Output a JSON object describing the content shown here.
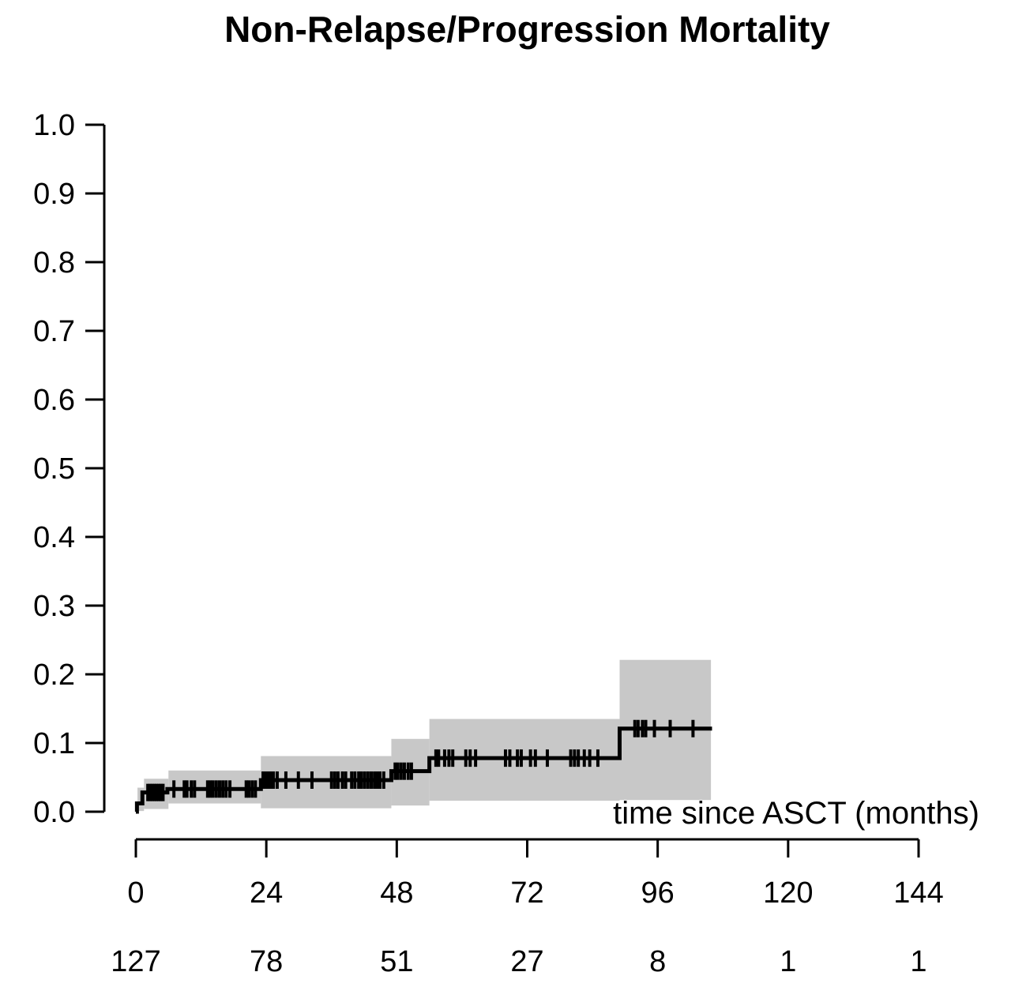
{
  "chart_data": {
    "type": "line",
    "subtype": "cumulative-incidence-step-curve-with-confidence-band",
    "title": "Non-Relapse/Progression Mortality",
    "xlabel": "time since ASCT (months)",
    "ylabel": "",
    "xlim": [
      0,
      144
    ],
    "ylim": [
      0.0,
      1.0
    ],
    "grid": false,
    "legend_position": "none",
    "x_ticks": [
      0,
      24,
      48,
      72,
      96,
      120,
      144
    ],
    "y_tick_labels": [
      "0.0",
      "0.1",
      "0.2",
      "0.3",
      "0.4",
      "0.5",
      "0.6",
      "0.7",
      "0.8",
      "0.9",
      "1.0"
    ],
    "colors": {
      "curve": "#000000",
      "confidence_band": "#c8c8c8",
      "axis": "#000000",
      "background": "#ffffff"
    },
    "series": [
      {
        "name": "Non-Relapse/Progression Mortality",
        "steps": [
          [
            0,
            0.0
          ],
          [
            0.2,
            0.012
          ],
          [
            1.2,
            0.028
          ],
          [
            5.8,
            0.033
          ],
          [
            23,
            0.046
          ],
          [
            47,
            0.059
          ],
          [
            54,
            0.078
          ],
          [
            89,
            0.121
          ]
        ],
        "end_time": 106
      }
    ],
    "confidence_band_segments": [
      [
        0.3,
        1.5,
        0.001,
        0.035
      ],
      [
        1.5,
        6,
        0.004,
        0.048
      ],
      [
        6,
        23,
        0.012,
        0.06
      ],
      [
        23,
        47,
        0.005,
        0.081
      ],
      [
        47,
        54,
        0.009,
        0.106
      ],
      [
        54,
        89,
        0.016,
        0.135
      ],
      [
        89,
        105.8,
        0.017,
        0.221
      ]
    ],
    "censor_marks": [
      [
        2.2,
        0.028
      ],
      [
        2.6,
        0.028
      ],
      [
        3.0,
        0.028
      ],
      [
        3.4,
        0.028
      ],
      [
        3.8,
        0.028
      ],
      [
        4.2,
        0.028
      ],
      [
        4.6,
        0.028
      ],
      [
        5.0,
        0.028
      ],
      [
        7.0,
        0.033
      ],
      [
        8.9,
        0.033
      ],
      [
        9.4,
        0.033
      ],
      [
        10.2,
        0.033
      ],
      [
        10.8,
        0.033
      ],
      [
        13.2,
        0.033
      ],
      [
        13.7,
        0.033
      ],
      [
        14.2,
        0.033
      ],
      [
        14.8,
        0.033
      ],
      [
        15.4,
        0.033
      ],
      [
        16.0,
        0.033
      ],
      [
        16.6,
        0.033
      ],
      [
        17.3,
        0.033
      ],
      [
        20.3,
        0.033
      ],
      [
        20.8,
        0.033
      ],
      [
        21.4,
        0.033
      ],
      [
        22.0,
        0.033
      ],
      [
        23.4,
        0.046
      ],
      [
        23.8,
        0.046
      ],
      [
        24.3,
        0.046
      ],
      [
        24.8,
        0.046
      ],
      [
        25.3,
        0.046
      ],
      [
        26.0,
        0.046
      ],
      [
        27.6,
        0.046
      ],
      [
        29.9,
        0.046
      ],
      [
        32.4,
        0.046
      ],
      [
        36.0,
        0.046
      ],
      [
        36.6,
        0.046
      ],
      [
        37.2,
        0.046
      ],
      [
        38.0,
        0.046
      ],
      [
        38.6,
        0.046
      ],
      [
        39.7,
        0.046
      ],
      [
        40.3,
        0.046
      ],
      [
        41.0,
        0.046
      ],
      [
        41.5,
        0.046
      ],
      [
        42.1,
        0.046
      ],
      [
        42.7,
        0.046
      ],
      [
        43.3,
        0.046
      ],
      [
        43.9,
        0.046
      ],
      [
        44.4,
        0.046
      ],
      [
        44.9,
        0.046
      ],
      [
        45.6,
        0.046
      ],
      [
        47.7,
        0.059
      ],
      [
        48.2,
        0.059
      ],
      [
        48.8,
        0.059
      ],
      [
        49.4,
        0.059
      ],
      [
        50.1,
        0.059
      ],
      [
        50.7,
        0.059
      ],
      [
        55.2,
        0.078
      ],
      [
        55.7,
        0.078
      ],
      [
        56.8,
        0.078
      ],
      [
        57.6,
        0.078
      ],
      [
        58.3,
        0.078
      ],
      [
        60.7,
        0.078
      ],
      [
        61.5,
        0.078
      ],
      [
        62.5,
        0.078
      ],
      [
        68.0,
        0.078
      ],
      [
        68.8,
        0.078
      ],
      [
        70.2,
        0.078
      ],
      [
        70.9,
        0.078
      ],
      [
        72.6,
        0.078
      ],
      [
        73.5,
        0.078
      ],
      [
        75.7,
        0.078
      ],
      [
        80.0,
        0.078
      ],
      [
        80.7,
        0.078
      ],
      [
        81.4,
        0.078
      ],
      [
        82.5,
        0.078
      ],
      [
        83.5,
        0.078
      ],
      [
        85.0,
        0.078
      ],
      [
        91.8,
        0.121
      ],
      [
        92.4,
        0.121
      ],
      [
        93.2,
        0.121
      ],
      [
        93.8,
        0.121
      ],
      [
        95.4,
        0.121
      ],
      [
        98.3,
        0.121
      ],
      [
        102.5,
        0.121
      ]
    ],
    "at_risk": {
      "times": [
        0,
        24,
        48,
        72,
        96,
        120,
        144
      ],
      "counts": [
        "127",
        "78",
        "51",
        "27",
        "8",
        "1",
        "1"
      ]
    }
  }
}
